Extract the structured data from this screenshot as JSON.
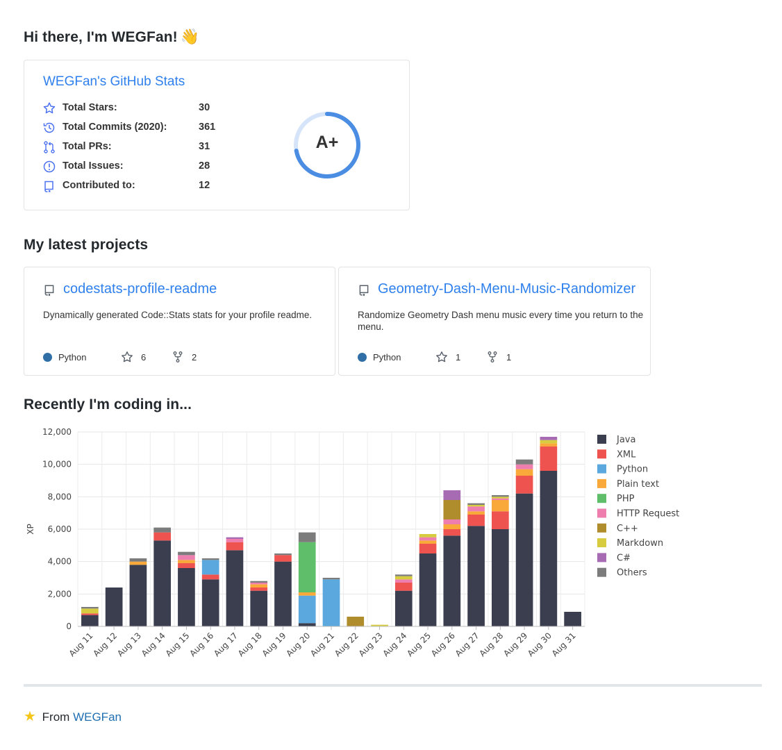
{
  "greeting": "Hi there, I'm WEGFan!",
  "greeting_emoji": "👋",
  "stats": {
    "title": "WEGFan's GitHub Stats",
    "rows": [
      {
        "icon": "star-icon",
        "label": "Total Stars:",
        "value": "30"
      },
      {
        "icon": "history-icon",
        "label": "Total Commits (2020):",
        "value": "361"
      },
      {
        "icon": "pull-request-icon",
        "label": "Total PRs:",
        "value": "31"
      },
      {
        "icon": "issue-icon",
        "label": "Total Issues:",
        "value": "28"
      },
      {
        "icon": "repo-icon",
        "label": "Contributed to:",
        "value": "12"
      }
    ],
    "rank": "A+",
    "rank_progress": 0.72,
    "accent": "#2f80ed"
  },
  "projects_heading": "My latest projects",
  "projects": [
    {
      "name": "codestats-profile-readme",
      "description": "Dynamically generated Code::Stats stats for your profile readme.",
      "language": "Python",
      "language_color": "#3572A5",
      "stars": "6",
      "forks": "2"
    },
    {
      "name": "Geometry-Dash-Menu-Music-Randomizer",
      "description": "Randomize Geometry Dash menu music every time you return to the menu.",
      "language": "Python",
      "language_color": "#3572A5",
      "stars": "1",
      "forks": "1"
    }
  ],
  "coding_heading": "Recently I'm coding in...",
  "chart_data": {
    "type": "bar",
    "stacked": true,
    "ylabel": "XP",
    "ylim": [
      0,
      12000
    ],
    "yticks": [
      "0",
      "2,000",
      "4,000",
      "6,000",
      "8,000",
      "10,000",
      "12,000"
    ],
    "grid": true,
    "legend": "right",
    "categories": [
      "Aug 11",
      "Aug 12",
      "Aug 13",
      "Aug 14",
      "Aug 15",
      "Aug 16",
      "Aug 17",
      "Aug 18",
      "Aug 19",
      "Aug 20",
      "Aug 21",
      "Aug 22",
      "Aug 23",
      "Aug 24",
      "Aug 25",
      "Aug 26",
      "Aug 27",
      "Aug 28",
      "Aug 29",
      "Aug 30",
      "Aug 31"
    ],
    "series": [
      {
        "name": "Java",
        "color": "#3b3e4f",
        "values": [
          700,
          2400,
          3800,
          5300,
          3600,
          2900,
          4700,
          2200,
          4000,
          200,
          0,
          0,
          0,
          2200,
          4500,
          5600,
          6200,
          6000,
          8200,
          9600,
          900
        ]
      },
      {
        "name": "XML",
        "color": "#ef5350",
        "values": [
          100,
          0,
          0,
          500,
          300,
          300,
          500,
          200,
          400,
          0,
          0,
          0,
          0,
          500,
          600,
          400,
          700,
          1100,
          1100,
          1500,
          0
        ]
      },
      {
        "name": "Python",
        "color": "#5aa8de",
        "values": [
          0,
          0,
          0,
          0,
          0,
          900,
          0,
          0,
          0,
          1700,
          2900,
          0,
          0,
          0,
          0,
          0,
          0,
          0,
          0,
          0,
          0
        ]
      },
      {
        "name": "Plain text",
        "color": "#f9a83a",
        "values": [
          0,
          0,
          200,
          0,
          200,
          0,
          0,
          200,
          0,
          200,
          0,
          0,
          0,
          0,
          200,
          300,
          200,
          700,
          400,
          200,
          0
        ]
      },
      {
        "name": "PHP",
        "color": "#5fbe69",
        "values": [
          0,
          0,
          0,
          0,
          0,
          0,
          0,
          0,
          0,
          3100,
          0,
          0,
          0,
          0,
          0,
          0,
          0,
          0,
          0,
          0,
          0
        ]
      },
      {
        "name": "HTTP Request",
        "color": "#ee7ead",
        "values": [
          0,
          0,
          0,
          0,
          300,
          0,
          200,
          100,
          0,
          0,
          0,
          0,
          0,
          200,
          200,
          300,
          300,
          100,
          300,
          0,
          0
        ]
      },
      {
        "name": "C++",
        "color": "#b08d2c",
        "values": [
          0,
          0,
          0,
          0,
          0,
          0,
          0,
          0,
          0,
          0,
          0,
          600,
          0,
          0,
          0,
          1200,
          0,
          0,
          0,
          0,
          0
        ]
      },
      {
        "name": "Markdown",
        "color": "#d7cc3f",
        "values": [
          300,
          0,
          0,
          0,
          0,
          0,
          0,
          0,
          0,
          0,
          0,
          0,
          100,
          200,
          200,
          0,
          100,
          100,
          0,
          200,
          0
        ]
      },
      {
        "name": "C#",
        "color": "#a66bb3",
        "values": [
          0,
          0,
          0,
          0,
          0,
          0,
          100,
          0,
          0,
          0,
          0,
          0,
          0,
          0,
          0,
          600,
          0,
          0,
          0,
          200,
          0
        ]
      },
      {
        "name": "Others",
        "color": "#7c7c7c",
        "values": [
          100,
          0,
          200,
          300,
          200,
          100,
          0,
          100,
          100,
          600,
          100,
          0,
          0,
          100,
          0,
          0,
          100,
          100,
          300,
          0,
          0
        ]
      }
    ]
  },
  "footer": {
    "prefix": "From",
    "link": "WEGFan"
  }
}
